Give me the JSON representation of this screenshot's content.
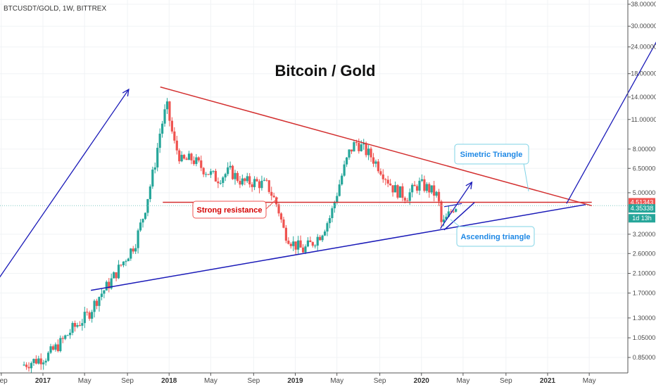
{
  "header": {
    "symbol": "BTCUSDT/GOLD, 1W, BITTREX"
  },
  "colors": {
    "up": "#26a69a",
    "down": "#ef5350",
    "trend_red": "#d32f2f",
    "trend_blue": "#1a1ab8",
    "price_line": "#80cbc4",
    "callout_border": "#7fd3e6",
    "callout_blue_text": "#1e88e5",
    "callout_red_text": "#d50000"
  },
  "chart_data": {
    "type": "candlestick",
    "title": "Bitcoin / Gold",
    "scale": "log",
    "y_ticks": [
      "38.00000",
      "30.00000",
      "24.00000",
      "18.00000",
      "14.00000",
      "11.00000",
      "8.00000",
      "6.50000",
      "5.00000",
      "3.20000",
      "2.60000",
      "2.10000",
      "1.70000",
      "1.30000",
      "1.05000",
      "0.85000"
    ],
    "x_ticks": [
      "Sep",
      "2017",
      "May",
      "Sep",
      "2018",
      "May",
      "Sep",
      "2019",
      "May",
      "Sep",
      "2020",
      "May",
      "Sep",
      "2021",
      "May"
    ],
    "x_ticks_bold": [
      "2017",
      "2018",
      "2019",
      "2020",
      "2021"
    ],
    "price_labels": [
      {
        "label": "4.51343",
        "value": 4.51343,
        "color": "#ef5350"
      },
      {
        "label": "4.35338",
        "value": 4.35338,
        "color": "#26a69a"
      },
      {
        "label": "1d 13h",
        "value": 3.6,
        "color": "#26a69a"
      }
    ],
    "resistance_level": 4.51343,
    "current_price": 4.35338,
    "candles_anchor_t": [
      2016.85,
      2016.95,
      2017.05,
      2017.15,
      2017.25,
      2017.38,
      2017.45,
      2017.55,
      2017.65,
      2017.75,
      2017.82,
      2017.9,
      2017.95,
      2018.0,
      2018.06,
      2018.12,
      2018.2,
      2018.3,
      2018.4,
      2018.5,
      2018.6,
      2018.7,
      2018.8,
      2018.88,
      2018.93,
      2019.0,
      2019.08,
      2019.15,
      2019.22,
      2019.3,
      2019.38,
      2019.45,
      2019.5,
      2019.55,
      2019.62,
      2019.7,
      2019.8,
      2019.9,
      2020.0,
      2020.08,
      2020.15,
      2020.18,
      2020.22,
      2020.28
    ],
    "candles_anchor_p": [
      0.78,
      0.82,
      0.86,
      0.98,
      1.15,
      1.35,
      1.6,
      1.9,
      2.35,
      2.9,
      4.0,
      6.5,
      9.8,
      12.8,
      8.5,
      7.0,
      7.2,
      6.4,
      5.8,
      6.3,
      5.6,
      5.6,
      5.4,
      4.3,
      3.3,
      2.9,
      2.7,
      2.9,
      3.2,
      3.9,
      5.8,
      7.8,
      8.6,
      8.1,
      7.4,
      6.4,
      5.2,
      4.8,
      5.5,
      5.2,
      4.8,
      3.5,
      3.8,
      4.35
    ],
    "trendlines": [
      {
        "name": "descending",
        "color": "red",
        "from": [
          2017.93,
          15.6
        ],
        "to": [
          2021.35,
          4.35
        ]
      },
      {
        "name": "ascending",
        "color": "blue",
        "from": [
          2017.38,
          1.75
        ],
        "to": [
          2021.3,
          4.4
        ]
      },
      {
        "name": "resistance",
        "color": "red",
        "from": [
          2017.95,
          4.51343
        ],
        "to": [
          2021.35,
          4.51343
        ]
      },
      {
        "name": "small-ascending",
        "color": "blue",
        "from": [
          2020.18,
          3.35
        ],
        "to": [
          2020.42,
          4.5
        ]
      }
    ],
    "arrows": [
      {
        "name": "arrow-1",
        "from": [
          2016.6,
          1.8
        ],
        "to": [
          2017.68,
          15.2
        ]
      },
      {
        "name": "arrow-2",
        "from": [
          2020.15,
          3.4
        ],
        "to": [
          2020.4,
          5.6
        ]
      },
      {
        "name": "arrow-3",
        "from": [
          2021.15,
          4.45
        ],
        "to": [
          2021.97,
          33.0
        ]
      }
    ],
    "annotations": [
      {
        "text": "Strong resistance",
        "style": "red"
      },
      {
        "text": "Simetric Triangle",
        "style": "blue"
      },
      {
        "text": "Ascending triangle",
        "style": "blue"
      }
    ]
  }
}
